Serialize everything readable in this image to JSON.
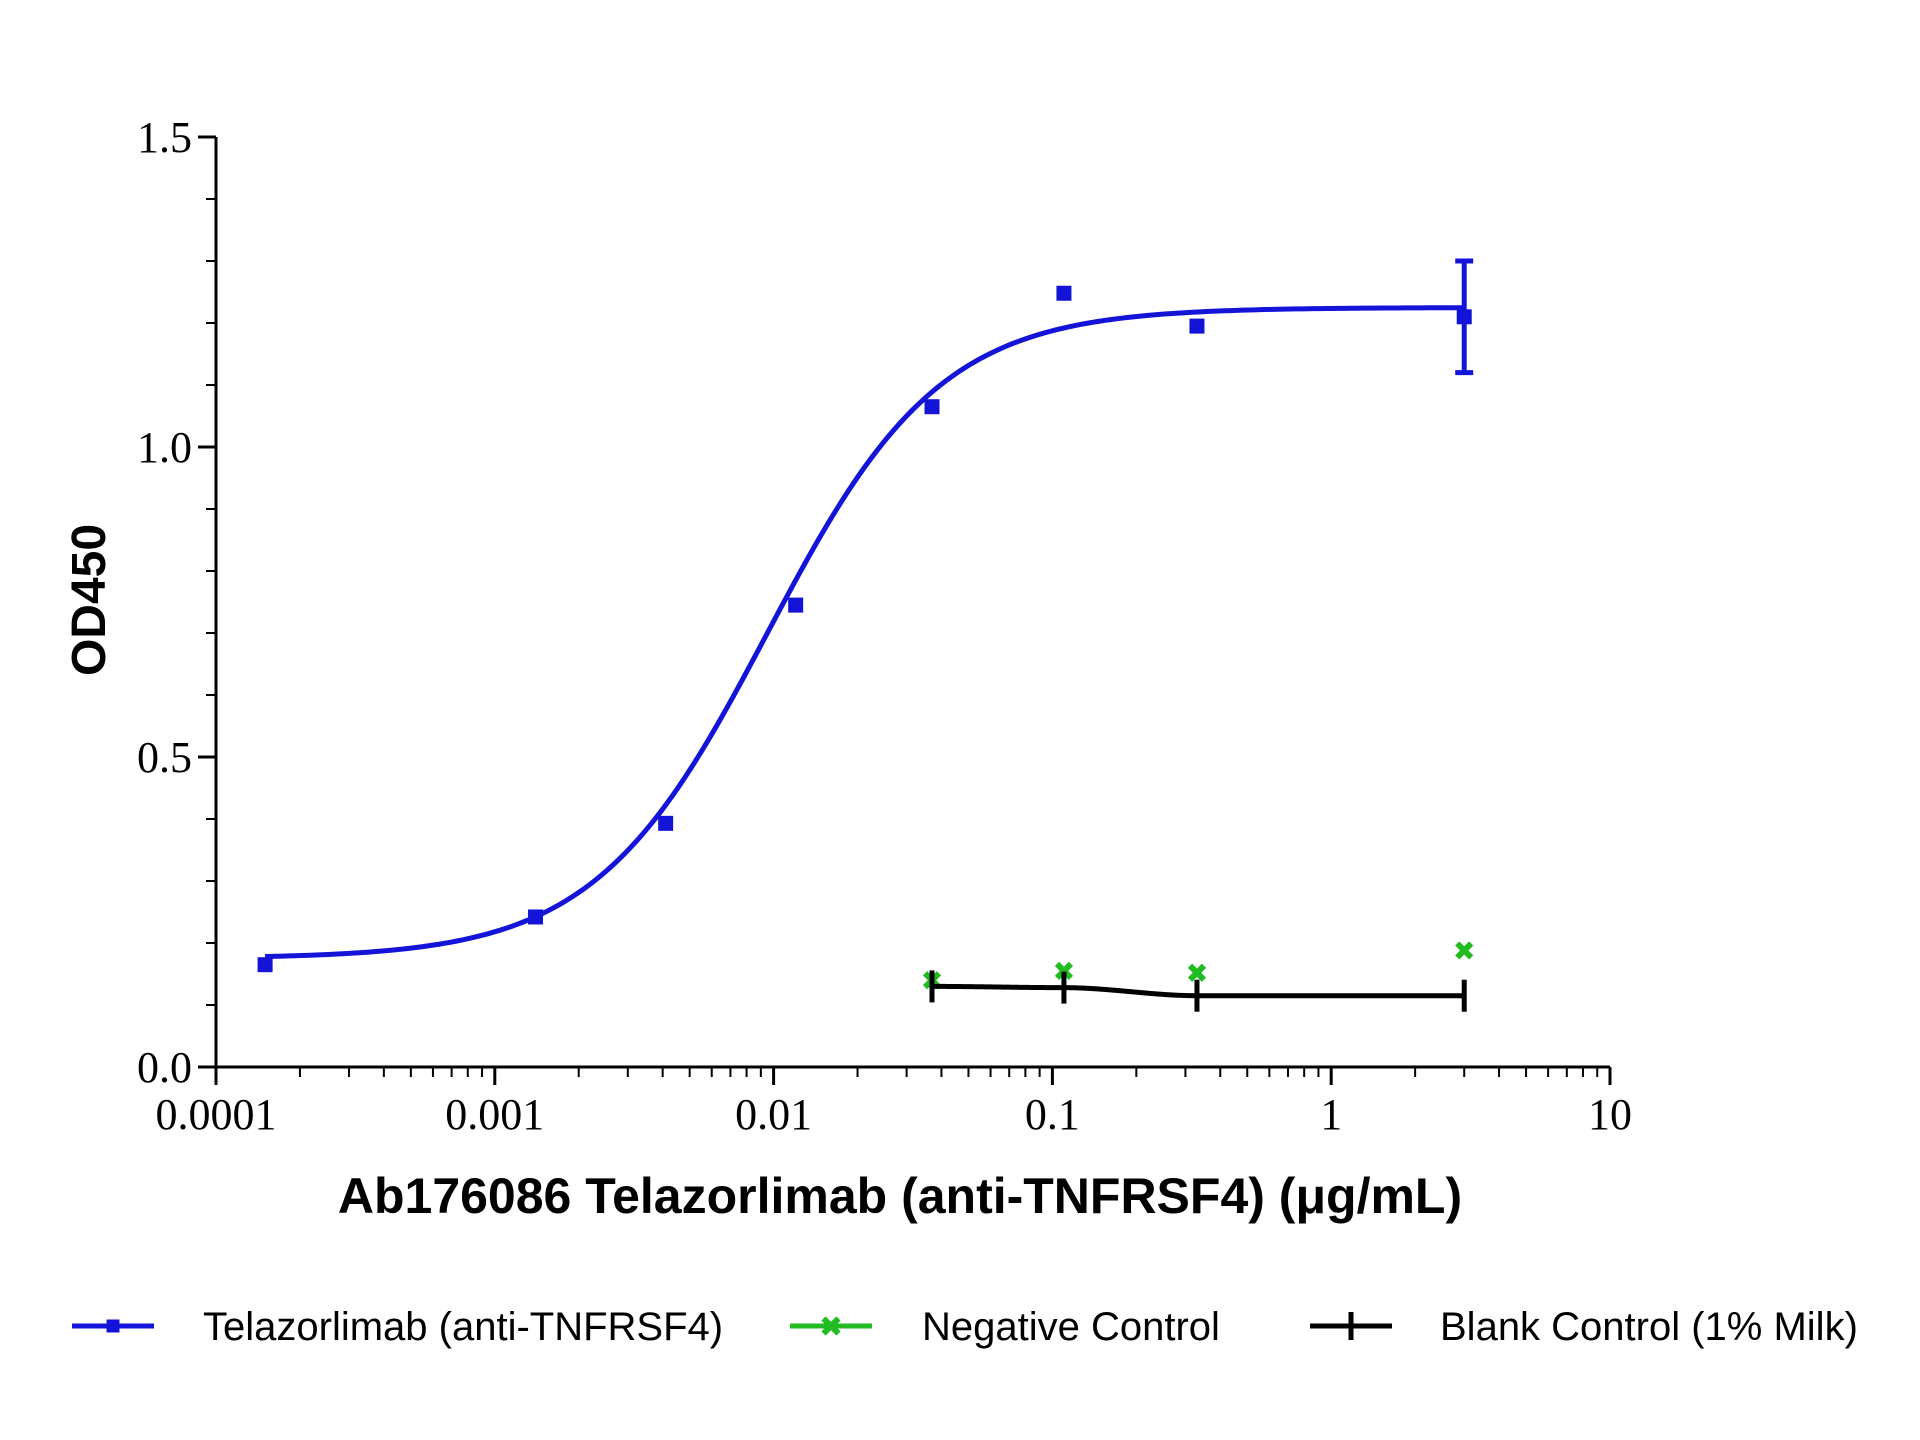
{
  "chart_data": {
    "type": "scatter",
    "xlabel": "Ab176086 Telazorlimab (anti-TNFRSF4) (μg/mL)",
    "ylabel": "OD450",
    "xscale": "log",
    "xlim": [
      0.0001,
      10
    ],
    "ylim": [
      0,
      1.5
    ],
    "x_ticks": [
      {
        "value": 0.0001,
        "label": "0.0001"
      },
      {
        "value": 0.001,
        "label": "0.001"
      },
      {
        "value": 0.01,
        "label": "0.01"
      },
      {
        "value": 0.1,
        "label": "0.1"
      },
      {
        "value": 1,
        "label": "1"
      },
      {
        "value": 10,
        "label": "10"
      }
    ],
    "y_ticks": [
      {
        "value": 0,
        "label": "0.0"
      },
      {
        "value": 0.5,
        "label": "0.5"
      },
      {
        "value": 1.0,
        "label": "1.0"
      },
      {
        "value": 1.5,
        "label": "1.5"
      }
    ],
    "grid": false,
    "legend_position": "bottom",
    "series": [
      {
        "name": "Telazorlimab (anti-TNFRSF4)",
        "color": "#1414d8",
        "marker": "square",
        "x": [
          0.00015,
          0.0014,
          0.0041,
          0.012,
          0.037,
          0.11,
          0.33,
          3.0
        ],
        "y": [
          0.165,
          0.242,
          0.393,
          0.745,
          1.065,
          1.248,
          1.195,
          1.21
        ],
        "error": [
          0,
          0,
          0,
          0,
          0,
          0,
          0,
          0.09
        ],
        "fit": {
          "bottom": 0.175,
          "top": 1.225,
          "ec50": 0.0095,
          "hill": 1.4
        }
      },
      {
        "name": "Negative Control",
        "color": "#22bb22",
        "marker": "x",
        "x": [
          0.037,
          0.11,
          0.33,
          3.0
        ],
        "y": [
          0.14,
          0.155,
          0.152,
          0.188
        ]
      },
      {
        "name": "Blank Control (1% Milk)",
        "color": "#000000",
        "marker": "plus",
        "x": [
          0.037,
          0.11,
          0.33,
          3.0
        ],
        "y": [
          0.13,
          0.128,
          0.115,
          0.115
        ]
      }
    ]
  }
}
